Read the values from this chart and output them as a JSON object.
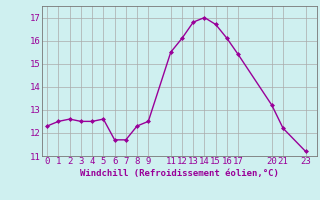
{
  "x": [
    0,
    1,
    2,
    3,
    4,
    5,
    6,
    7,
    8,
    9,
    11,
    12,
    13,
    14,
    15,
    16,
    17,
    20,
    21,
    23
  ],
  "y": [
    12.3,
    12.5,
    12.6,
    12.5,
    12.5,
    12.6,
    11.7,
    11.7,
    12.3,
    12.5,
    15.5,
    16.1,
    16.8,
    17.0,
    16.7,
    16.1,
    15.4,
    13.2,
    12.2,
    11.2
  ],
  "line_color": "#990099",
  "marker": "D",
  "marker_size": 2.0,
  "bg_color": "#cff0f0",
  "grid_color": "#aaaaaa",
  "xlabel": "Windchill (Refroidissement éolien,°C)",
  "xlabel_color": "#990099",
  "tick_color": "#990099",
  "ylim": [
    11,
    17.5
  ],
  "xlim": [
    -0.5,
    24
  ],
  "xticks": [
    0,
    1,
    2,
    3,
    4,
    5,
    6,
    7,
    8,
    9,
    11,
    12,
    13,
    14,
    15,
    16,
    17,
    20,
    21,
    23
  ],
  "xtick_labels": [
    "0",
    "1",
    "2",
    "3",
    "4",
    "5",
    "6",
    "7",
    "8",
    "9",
    "11",
    "12",
    "13",
    "14",
    "15",
    "16",
    "17",
    "20",
    "21",
    "23"
  ],
  "yticks": [
    11,
    12,
    13,
    14,
    15,
    16,
    17
  ],
  "ytick_labels": [
    "11",
    "12",
    "13",
    "14",
    "15",
    "16",
    "17"
  ],
  "linewidth": 1.0,
  "font_size": 6.5
}
